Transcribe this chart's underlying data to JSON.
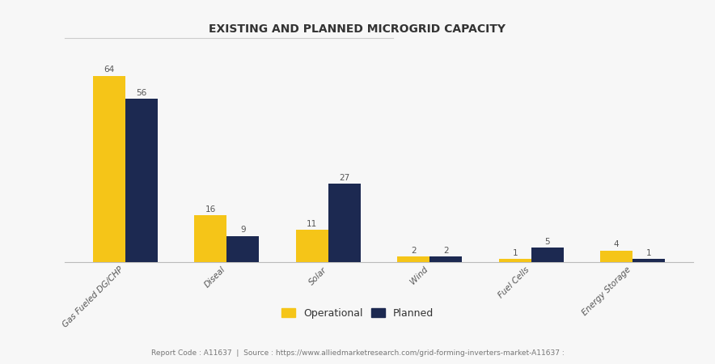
{
  "title": "EXISTING AND PLANNED MICROGRID CAPACITY",
  "categories": [
    "Gas Fueled DG/CHP",
    "Diseal",
    "Solar",
    "Wind",
    "Fuel Cells",
    "Energy Storage"
  ],
  "operational": [
    64,
    16,
    11,
    2,
    1,
    4
  ],
  "planned": [
    56,
    9,
    27,
    2,
    5,
    1
  ],
  "operational_color": "#F5C518",
  "planned_color": "#1C2951",
  "background_color": "#F7F7F7",
  "grid_color": "#DDDDDD",
  "bar_width": 0.32,
  "legend_labels": [
    "Operational",
    "Planned"
  ],
  "footer_text": "Report Code : A11637  |  Source : https://www.alliedmarketresearch.com/grid-forming-inverters-market-A11637 :",
  "title_fontsize": 10,
  "label_fontsize": 7.5,
  "tick_fontsize": 7.5,
  "footer_fontsize": 6.5,
  "legend_fontsize": 9,
  "ylim": [
    0,
    75
  ]
}
